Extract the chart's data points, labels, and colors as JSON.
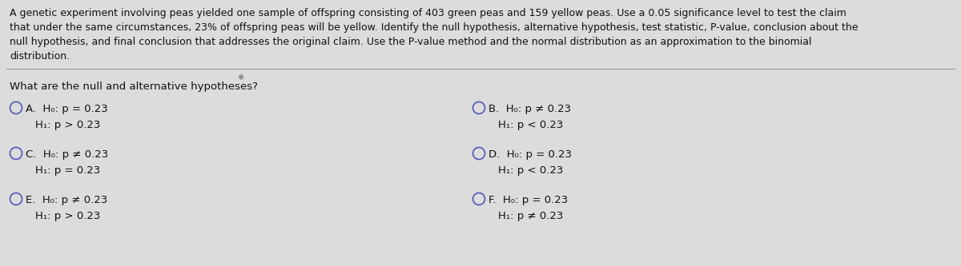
{
  "bg_color": "#dcdcdc",
  "header_text": "A genetic experiment involving peas yielded one sample of offspring consisting of 403 green peas and 159 yellow peas. Use a 0.05 significance level to test the claim\nthat under the same circumstances, 23% of offspring peas will be yellow. Identify the null hypothesis, alternative hypothesis, test statistic, P-value, conclusion about the\nnull hypothesis, and final conclusion that addresses the original claim. Use the P-value method and the normal distribution as an approximation to the binomial\ndistribution.",
  "question": "What are the null and alternative hypotheses?",
  "options": [
    {
      "label": "A.",
      "line1": "H₀: p = 0.23",
      "line2": "H₁: p > 0.23",
      "col": 0,
      "row": 0
    },
    {
      "label": "B.",
      "line1": "H₀: p ≠ 0.23",
      "line2": "H₁: p < 0.23",
      "col": 1,
      "row": 0
    },
    {
      "label": "C.",
      "line1": "H₀: p ≠ 0.23",
      "line2": "H₁: p = 0.23",
      "col": 0,
      "row": 1
    },
    {
      "label": "D.",
      "line1": "H₀: p = 0.23",
      "line2": "H₁: p < 0.23",
      "col": 1,
      "row": 1
    },
    {
      "label": "E.",
      "line1": "H₀: p ≠ 0.23",
      "line2": "H₁: p > 0.23",
      "col": 0,
      "row": 2
    },
    {
      "label": "F.",
      "line1": "H₀: p = 0.23",
      "line2": "H₁: p ≠ 0.23",
      "col": 1,
      "row": 2
    }
  ],
  "header_fontsize": 9.0,
  "question_fontsize": 9.5,
  "option_fontsize": 9.5,
  "text_color": "#111111",
  "circle_color": "#5555bb",
  "line_color": "#999999"
}
